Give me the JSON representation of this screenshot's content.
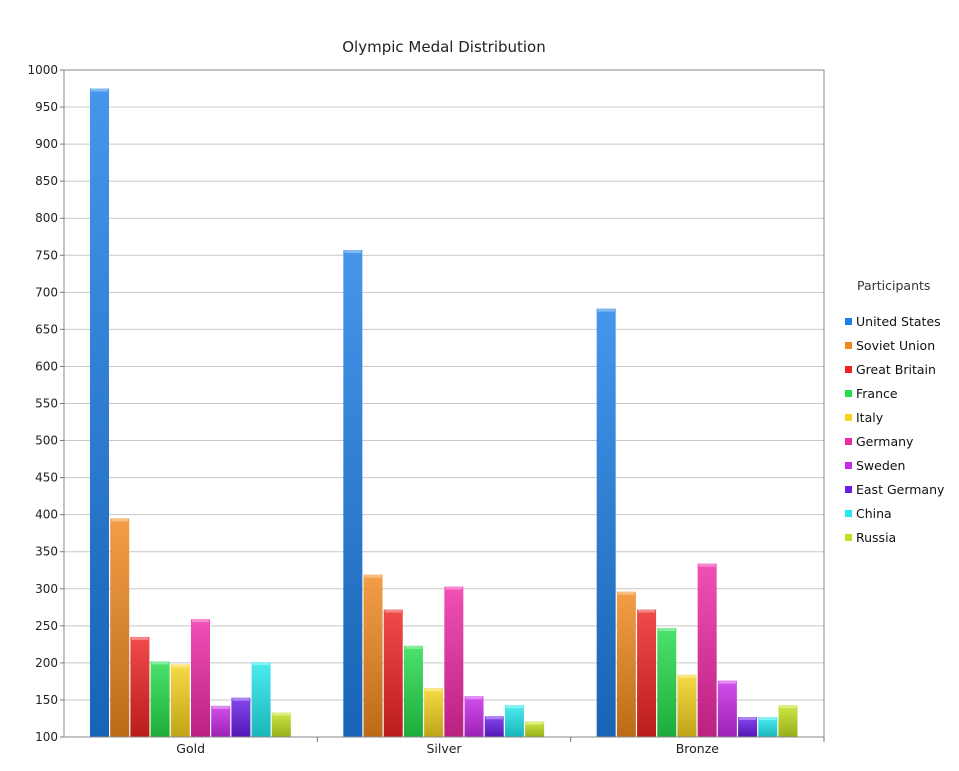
{
  "chart_data": {
    "type": "bar",
    "title": "Olympic Medal Distribution",
    "categories": [
      "Gold",
      "Silver",
      "Bronze"
    ],
    "ylim": [
      100,
      1000
    ],
    "yticks": [
      100,
      150,
      200,
      250,
      300,
      350,
      400,
      450,
      500,
      550,
      600,
      650,
      700,
      750,
      800,
      850,
      900,
      950,
      1000
    ],
    "grid": true,
    "legend_title": "Participants",
    "legend_position": "right",
    "series": [
      {
        "name": "United States",
        "color": "#1e7fe8",
        "values": [
          975,
          757,
          678
        ]
      },
      {
        "name": "Soviet Union",
        "color": "#f0891e",
        "values": [
          395,
          319,
          296
        ]
      },
      {
        "name": "Great Britain",
        "color": "#ee2424",
        "values": [
          235,
          272,
          272
        ]
      },
      {
        "name": "France",
        "color": "#25dc4c",
        "values": [
          202,
          223,
          247
        ]
      },
      {
        "name": "Italy",
        "color": "#f5d21e",
        "values": [
          198,
          166,
          184
        ]
      },
      {
        "name": "Germany",
        "color": "#ee2aa6",
        "values": [
          259,
          303,
          334
        ]
      },
      {
        "name": "Sweden",
        "color": "#c82ae8",
        "values": [
          142,
          155,
          176
        ]
      },
      {
        "name": "East Germany",
        "color": "#6a1ee8",
        "values": [
          153,
          128,
          127
        ]
      },
      {
        "name": "China",
        "color": "#23e8ee",
        "values": [
          201,
          143,
          127
        ]
      },
      {
        "name": "Russia",
        "color": "#c2e01e",
        "values": [
          133,
          121,
          143
        ]
      }
    ]
  }
}
